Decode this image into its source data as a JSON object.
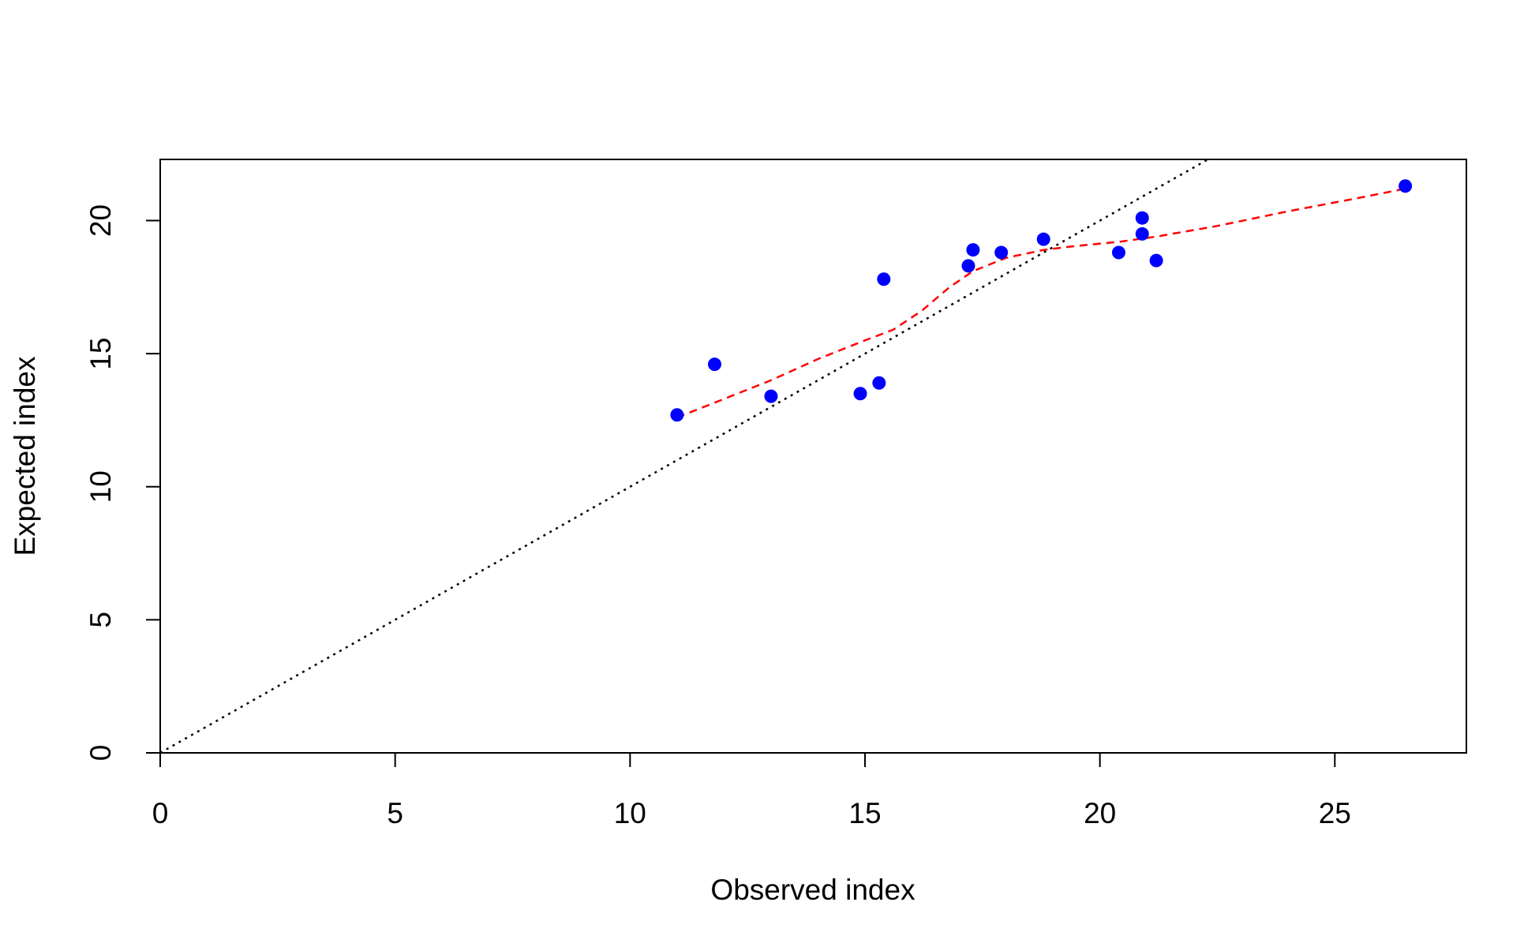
{
  "chart_data": {
    "type": "scatter",
    "title": "",
    "xlabel": "Observed index",
    "ylabel": "Expected index",
    "xlim": [
      0,
      27.8
    ],
    "ylim": [
      0,
      22.3
    ],
    "x_ticks": [
      0,
      5,
      10,
      15,
      20,
      25
    ],
    "y_ticks": [
      0,
      5,
      10,
      15,
      20
    ],
    "grid": false,
    "legend": "none",
    "points": [
      {
        "x": 11.0,
        "y": 12.7
      },
      {
        "x": 11.8,
        "y": 14.6
      },
      {
        "x": 13.0,
        "y": 13.4
      },
      {
        "x": 14.9,
        "y": 13.5
      },
      {
        "x": 15.3,
        "y": 13.9
      },
      {
        "x": 15.4,
        "y": 17.8
      },
      {
        "x": 17.2,
        "y": 18.3
      },
      {
        "x": 17.3,
        "y": 18.9
      },
      {
        "x": 17.9,
        "y": 18.8
      },
      {
        "x": 18.8,
        "y": 19.3
      },
      {
        "x": 20.4,
        "y": 18.8
      },
      {
        "x": 20.9,
        "y": 20.1
      },
      {
        "x": 20.9,
        "y": 19.5
      },
      {
        "x": 21.2,
        "y": 18.5
      },
      {
        "x": 26.5,
        "y": 21.3
      }
    ],
    "reference_line": {
      "slope": 1,
      "intercept": 0,
      "style": "dotted",
      "color": "#000000"
    },
    "smooth_line": [
      {
        "x": 11.0,
        "y": 12.6
      },
      {
        "x": 12.0,
        "y": 13.3
      },
      {
        "x": 13.0,
        "y": 14.0
      },
      {
        "x": 14.0,
        "y": 14.8
      },
      {
        "x": 15.0,
        "y": 15.5
      },
      {
        "x": 15.6,
        "y": 15.9
      },
      {
        "x": 16.2,
        "y": 16.6
      },
      {
        "x": 16.8,
        "y": 17.5
      },
      {
        "x": 17.3,
        "y": 18.1
      },
      {
        "x": 18.0,
        "y": 18.6
      },
      {
        "x": 18.8,
        "y": 18.9
      },
      {
        "x": 19.5,
        "y": 19.05
      },
      {
        "x": 20.4,
        "y": 19.2
      },
      {
        "x": 21.2,
        "y": 19.4
      },
      {
        "x": 22.5,
        "y": 19.8
      },
      {
        "x": 24.0,
        "y": 20.35
      },
      {
        "x": 25.5,
        "y": 20.85
      },
      {
        "x": 26.5,
        "y": 21.2
      }
    ],
    "colors": {
      "points": "#0000ff",
      "smooth": "#ff0000",
      "reference": "#000000",
      "axes": "#000000"
    }
  }
}
